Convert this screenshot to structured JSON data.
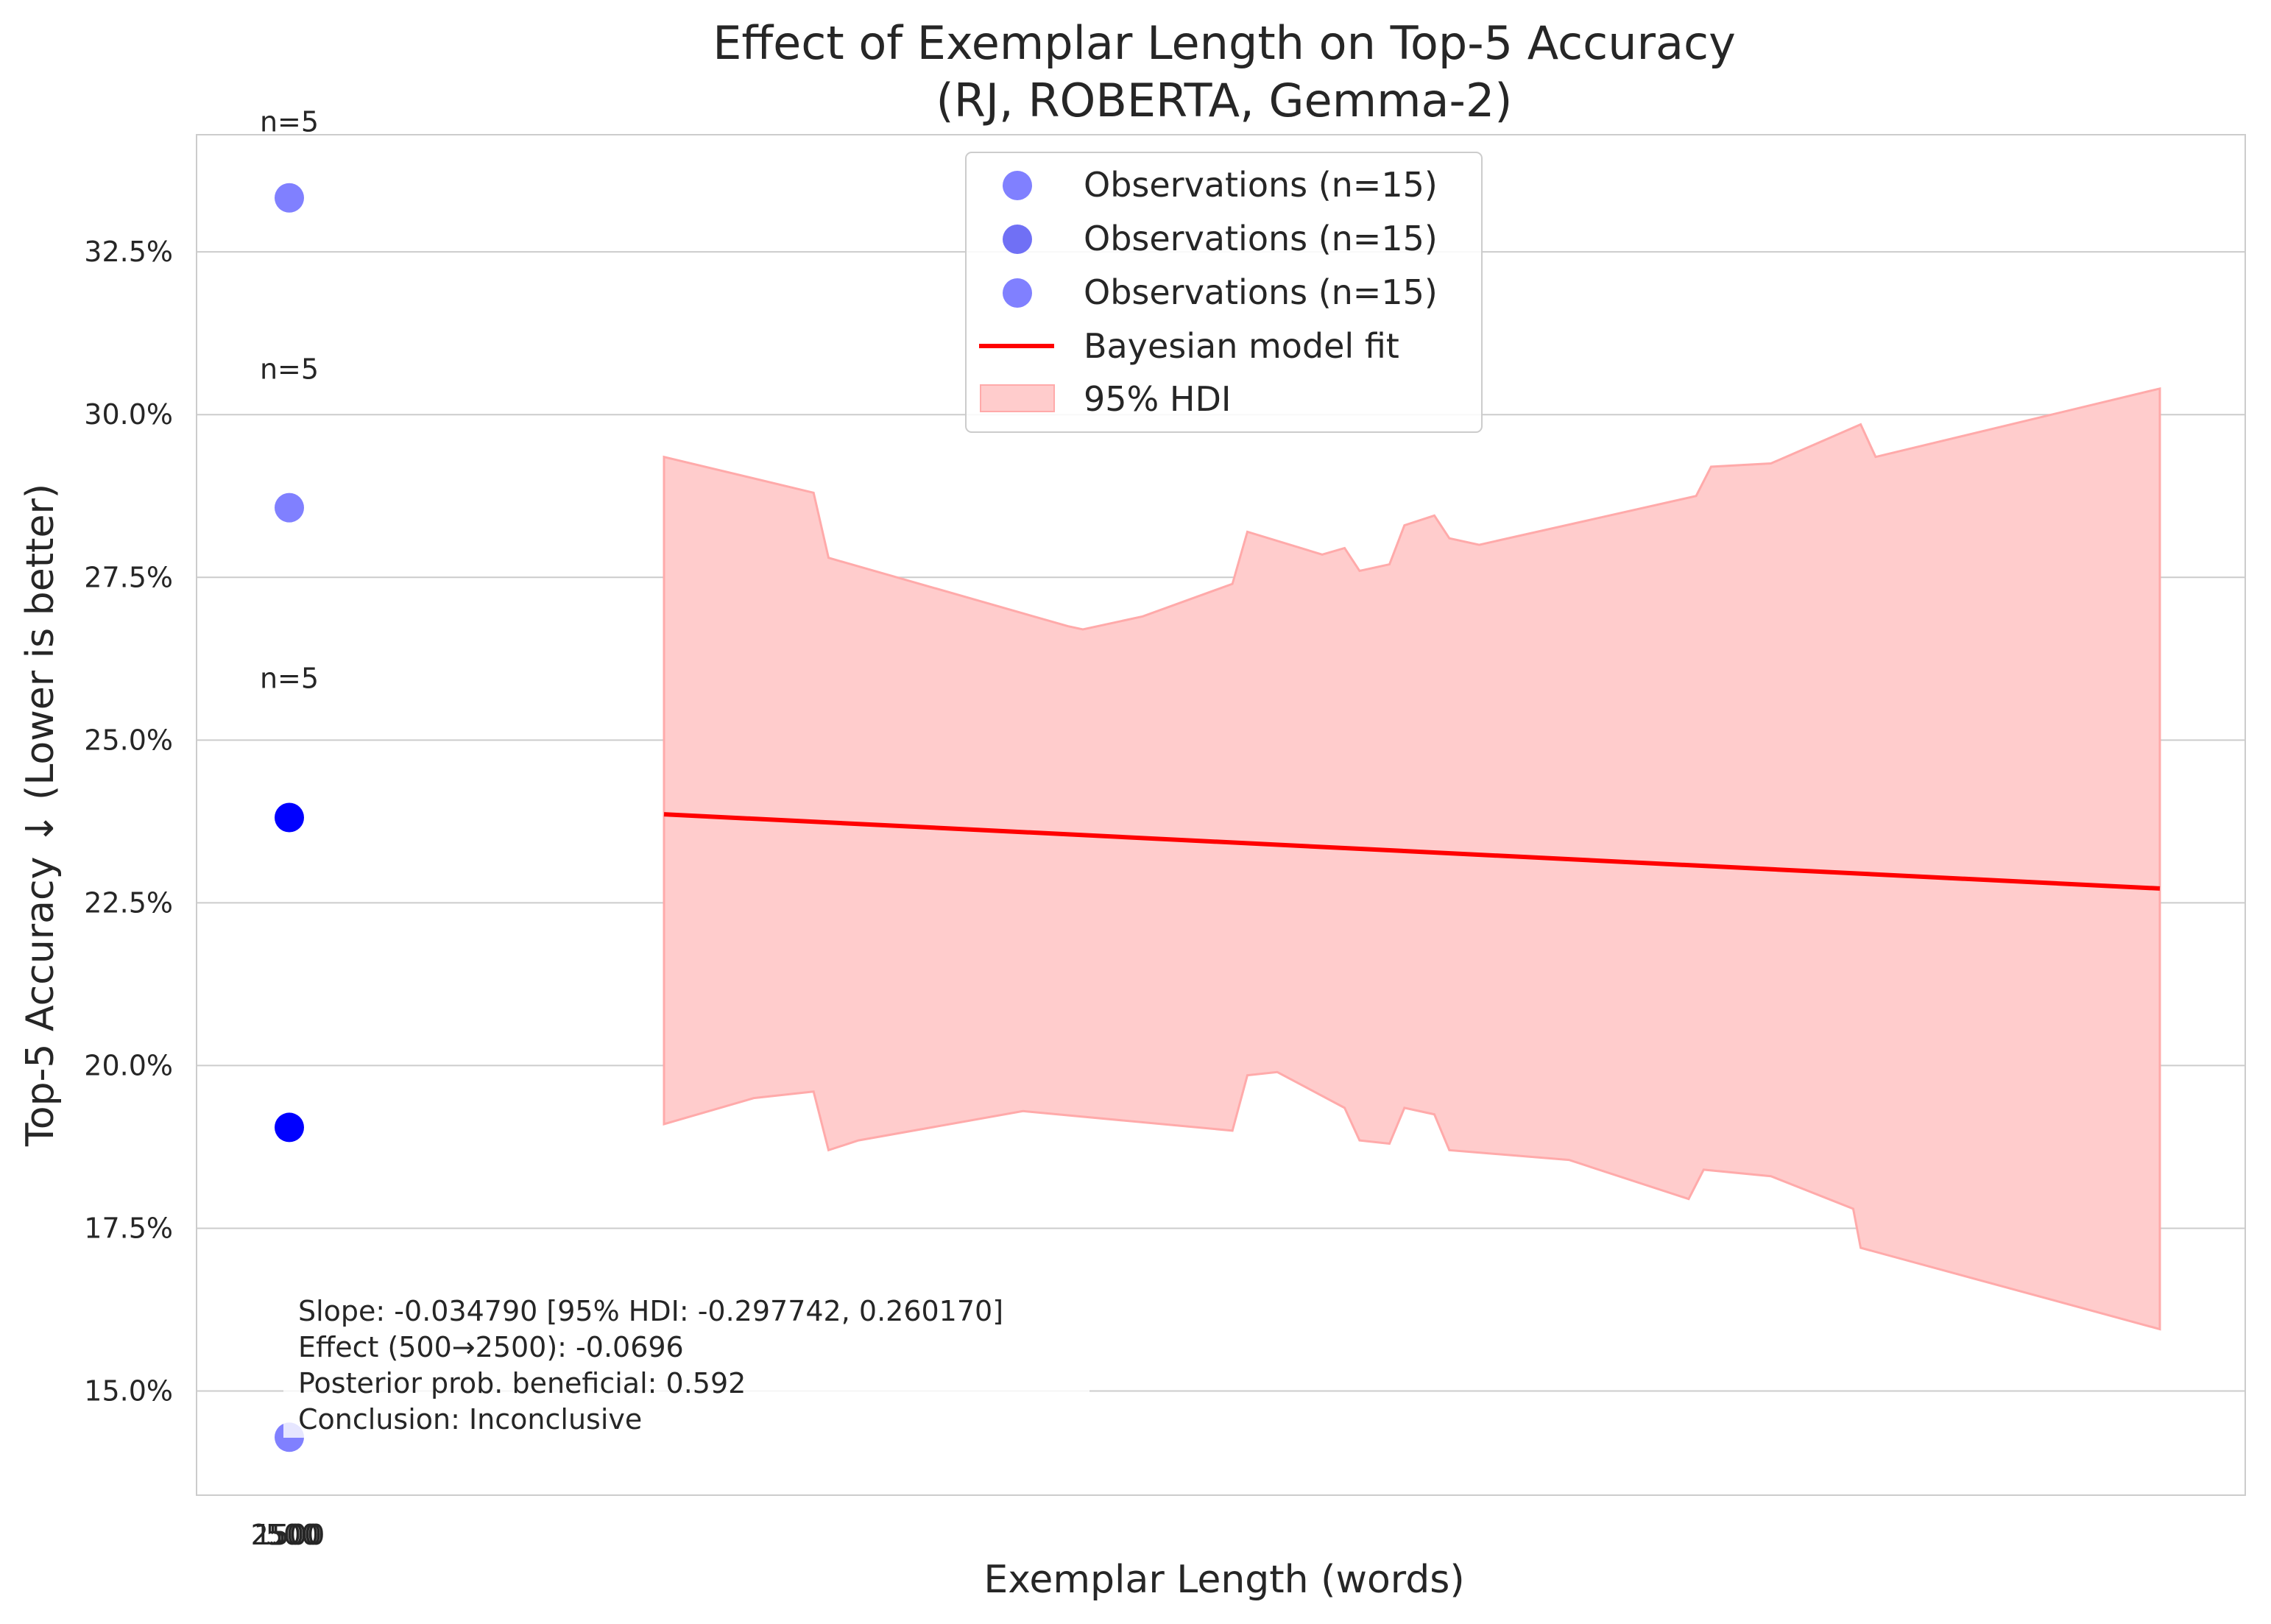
{
  "chart_data": {
    "type": "scatter",
    "title_line1": "Effect of Exemplar Length on Top-5 Accuracy",
    "title_line2": "(RJ, ROBERTA, Gemma-2)",
    "xlabel": "Exemplar Length (words)",
    "ylabel": "Top-5 Accuracy ↓ (Lower is better)",
    "x_ticks": [
      "2500",
      "1500",
      "500"
    ],
    "y_ticks": [
      "15.0%",
      "17.5%",
      "20.0%",
      "22.5%",
      "25.0%",
      "27.5%",
      "30.0%",
      "32.5%"
    ],
    "y_tick_values": [
      15.0,
      17.5,
      20.0,
      22.5,
      25.0,
      27.5,
      30.0,
      32.5
    ],
    "ylim": [
      13.4,
      34.3
    ],
    "grid": "horizontal",
    "legend_position": "top-center",
    "series": [
      {
        "name": "Observations (n=15)",
        "kind": "scatter",
        "color": "#8080ff",
        "points": [
          [
            500,
            33.33
          ],
          [
            1500,
            28.57
          ],
          [
            2500,
            14.29
          ]
        ]
      },
      {
        "name": "Observations (n=15)",
        "kind": "scatter",
        "color": "#7070f5",
        "points": [
          [
            500,
            23.81
          ],
          [
            1500,
            19.05
          ]
        ]
      },
      {
        "name": "Observations (n=15)",
        "kind": "scatter",
        "color": "#8080ff",
        "points": []
      },
      {
        "name": "Bayesian model fit",
        "kind": "line",
        "color": "#ff0000",
        "points": [
          [
            0,
            23.86
          ],
          [
            1,
            22.72
          ]
        ]
      },
      {
        "name": "95% HDI",
        "kind": "band",
        "color": "#ffcccc"
      }
    ],
    "hdi_band": {
      "upper": [
        [
          0.0,
          29.35
        ],
        [
          0.1,
          28.8
        ],
        [
          0.11,
          27.8
        ],
        [
          0.27,
          26.75
        ],
        [
          0.28,
          26.7
        ],
        [
          0.32,
          26.9
        ],
        [
          0.38,
          27.4
        ],
        [
          0.39,
          28.2
        ],
        [
          0.44,
          27.85
        ],
        [
          0.455,
          27.95
        ],
        [
          0.465,
          27.6
        ],
        [
          0.485,
          27.7
        ],
        [
          0.495,
          28.3
        ],
        [
          0.515,
          28.45
        ],
        [
          0.525,
          28.1
        ],
        [
          0.545,
          28.0
        ],
        [
          0.69,
          28.75
        ],
        [
          0.7,
          29.2
        ],
        [
          0.74,
          29.25
        ],
        [
          0.8,
          29.85
        ],
        [
          0.81,
          29.35
        ],
        [
          1.0,
          30.4
        ]
      ],
      "lower": [
        [
          0.0,
          19.1
        ],
        [
          0.06,
          19.5
        ],
        [
          0.1,
          19.6
        ],
        [
          0.11,
          18.7
        ],
        [
          0.13,
          18.85
        ],
        [
          0.24,
          19.3
        ],
        [
          0.38,
          19.0
        ],
        [
          0.39,
          19.85
        ],
        [
          0.41,
          19.9
        ],
        [
          0.455,
          19.35
        ],
        [
          0.465,
          18.85
        ],
        [
          0.485,
          18.8
        ],
        [
          0.495,
          19.35
        ],
        [
          0.515,
          19.25
        ],
        [
          0.525,
          18.7
        ],
        [
          0.605,
          18.55
        ],
        [
          0.685,
          17.95
        ],
        [
          0.695,
          18.4
        ],
        [
          0.74,
          18.3
        ],
        [
          0.795,
          17.8
        ],
        [
          0.8,
          17.2
        ],
        [
          1.0,
          15.95
        ]
      ]
    },
    "count_labels": [
      "n=5",
      "n=5",
      "n=5"
    ],
    "count_label_values": [
      34.5,
      30.7,
      25.95
    ],
    "annotation": {
      "line1": "Slope: -0.034790 [95% HDI: -0.297742, 0.260170]",
      "line2": "Effect (500→2500): -0.0696",
      "line3": "Posterior prob. beneficial: 0.592",
      "line4": "Conclusion: Inconclusive"
    }
  }
}
